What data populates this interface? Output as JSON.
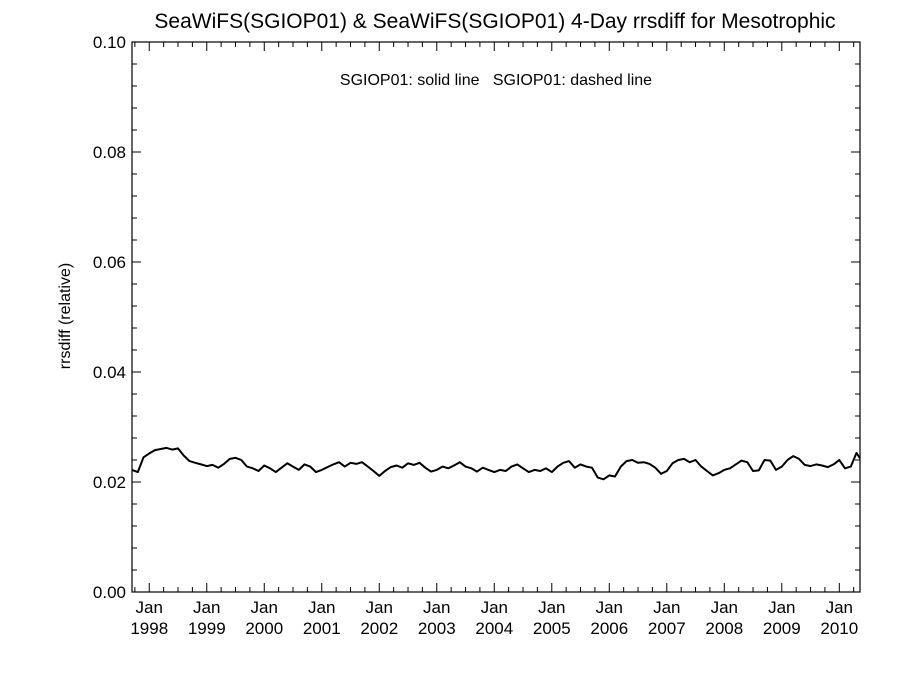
{
  "chart_data": {
    "type": "line",
    "title": "SeaWiFS(SGIOP01) & SeaWiFS(SGIOP01) 4-Day rrsdiff for Mesotrophic",
    "xlabel": "",
    "ylabel": "rrsdiff (relative)",
    "legend_text": "SGIOP01: solid line   SGIOP01: dashed line",
    "legend_placement": "top-center",
    "grid": false,
    "xlim": [
      1997.7,
      2010.36
    ],
    "ylim": [
      0.0,
      0.1
    ],
    "yticks": [
      "0.00",
      "0.02",
      "0.04",
      "0.06",
      "0.08",
      "0.10"
    ],
    "xtick_labels": [
      {
        "month": "Jan",
        "year": "1998"
      },
      {
        "month": "Jan",
        "year": "1999"
      },
      {
        "month": "Jan",
        "year": "2000"
      },
      {
        "month": "Jan",
        "year": "2001"
      },
      {
        "month": "Jan",
        "year": "2002"
      },
      {
        "month": "Jan",
        "year": "2003"
      },
      {
        "month": "Jan",
        "year": "2004"
      },
      {
        "month": "Jan",
        "year": "2005"
      },
      {
        "month": "Jan",
        "year": "2006"
      },
      {
        "month": "Jan",
        "year": "2007"
      },
      {
        "month": "Jan",
        "year": "2008"
      },
      {
        "month": "Jan",
        "year": "2009"
      },
      {
        "month": "Jan",
        "year": "2010"
      }
    ],
    "series": [
      {
        "style": "solid",
        "color": "#000000",
        "x": [
          1997.7,
          1997.8,
          1997.9,
          1998.0,
          1998.1,
          1998.2,
          1998.3,
          1998.4,
          1998.5,
          1998.6,
          1998.7,
          1998.8,
          1998.9,
          1999.0,
          1999.1,
          1999.2,
          1999.3,
          1999.4,
          1999.5,
          1999.6,
          1999.7,
          1999.8,
          1999.9,
          2000.0,
          2000.1,
          2000.2,
          2000.3,
          2000.4,
          2000.5,
          2000.6,
          2000.7,
          2000.8,
          2000.9,
          2001.0,
          2001.1,
          2001.2,
          2001.3,
          2001.4,
          2001.5,
          2001.6,
          2001.7,
          2001.8,
          2001.9,
          2002.0,
          2002.1,
          2002.2,
          2002.3,
          2002.4,
          2002.5,
          2002.6,
          2002.7,
          2002.8,
          2002.9,
          2003.0,
          2003.1,
          2003.2,
          2003.3,
          2003.4,
          2003.5,
          2003.6,
          2003.7,
          2003.8,
          2003.9,
          2004.0,
          2004.1,
          2004.2,
          2004.3,
          2004.4,
          2004.5,
          2004.6,
          2004.7,
          2004.8,
          2004.9,
          2005.0,
          2005.1,
          2005.2,
          2005.3,
          2005.4,
          2005.5,
          2005.6,
          2005.7,
          2005.8,
          2005.9,
          2006.0,
          2006.1,
          2006.2,
          2006.3,
          2006.4,
          2006.5,
          2006.6,
          2006.7,
          2006.8,
          2006.9,
          2007.0,
          2007.1,
          2007.2,
          2007.3,
          2007.4,
          2007.5,
          2007.6,
          2007.7,
          2007.8,
          2007.9,
          2008.0,
          2008.1,
          2008.2,
          2008.3,
          2008.4,
          2008.5,
          2008.6,
          2008.7,
          2008.8,
          2008.9,
          2009.0,
          2009.1,
          2009.2,
          2009.3,
          2009.4,
          2009.5,
          2009.6,
          2009.7,
          2009.8,
          2009.9,
          2010.0,
          2010.1,
          2010.2,
          2010.3,
          2010.36
        ],
        "y": [
          0.0222,
          0.0218,
          0.0245,
          0.0252,
          0.0258,
          0.026,
          0.0262,
          0.0259,
          0.0261,
          0.0248,
          0.0238,
          0.0235,
          0.0232,
          0.0229,
          0.0231,
          0.0226,
          0.0233,
          0.0242,
          0.0244,
          0.024,
          0.0228,
          0.0225,
          0.022,
          0.023,
          0.0225,
          0.0218,
          0.0226,
          0.0234,
          0.0228,
          0.0222,
          0.0232,
          0.0228,
          0.0218,
          0.0222,
          0.0227,
          0.0232,
          0.0236,
          0.0228,
          0.0235,
          0.0233,
          0.0236,
          0.0228,
          0.022,
          0.0211,
          0.022,
          0.0227,
          0.023,
          0.0226,
          0.0234,
          0.0231,
          0.0235,
          0.0226,
          0.0219,
          0.0222,
          0.0228,
          0.0225,
          0.023,
          0.0236,
          0.0228,
          0.0225,
          0.0219,
          0.0226,
          0.0222,
          0.0218,
          0.0222,
          0.022,
          0.0228,
          0.0232,
          0.0225,
          0.0218,
          0.0222,
          0.022,
          0.0225,
          0.0218,
          0.0228,
          0.0235,
          0.0238,
          0.0226,
          0.0232,
          0.0228,
          0.0226,
          0.0208,
          0.0205,
          0.0212,
          0.021,
          0.0228,
          0.0238,
          0.024,
          0.0235,
          0.0236,
          0.0233,
          0.0226,
          0.0215,
          0.022,
          0.0234,
          0.024,
          0.0242,
          0.0236,
          0.024,
          0.0228,
          0.022,
          0.0212,
          0.0216,
          0.0222,
          0.0225,
          0.0232,
          0.0239,
          0.0236,
          0.022,
          0.0221,
          0.024,
          0.0239,
          0.0222,
          0.0228,
          0.024,
          0.0247,
          0.0242,
          0.0231,
          0.0229,
          0.0232,
          0.023,
          0.0227,
          0.0232,
          0.024,
          0.0225,
          0.0228,
          0.0253,
          0.0243
        ]
      }
    ]
  }
}
